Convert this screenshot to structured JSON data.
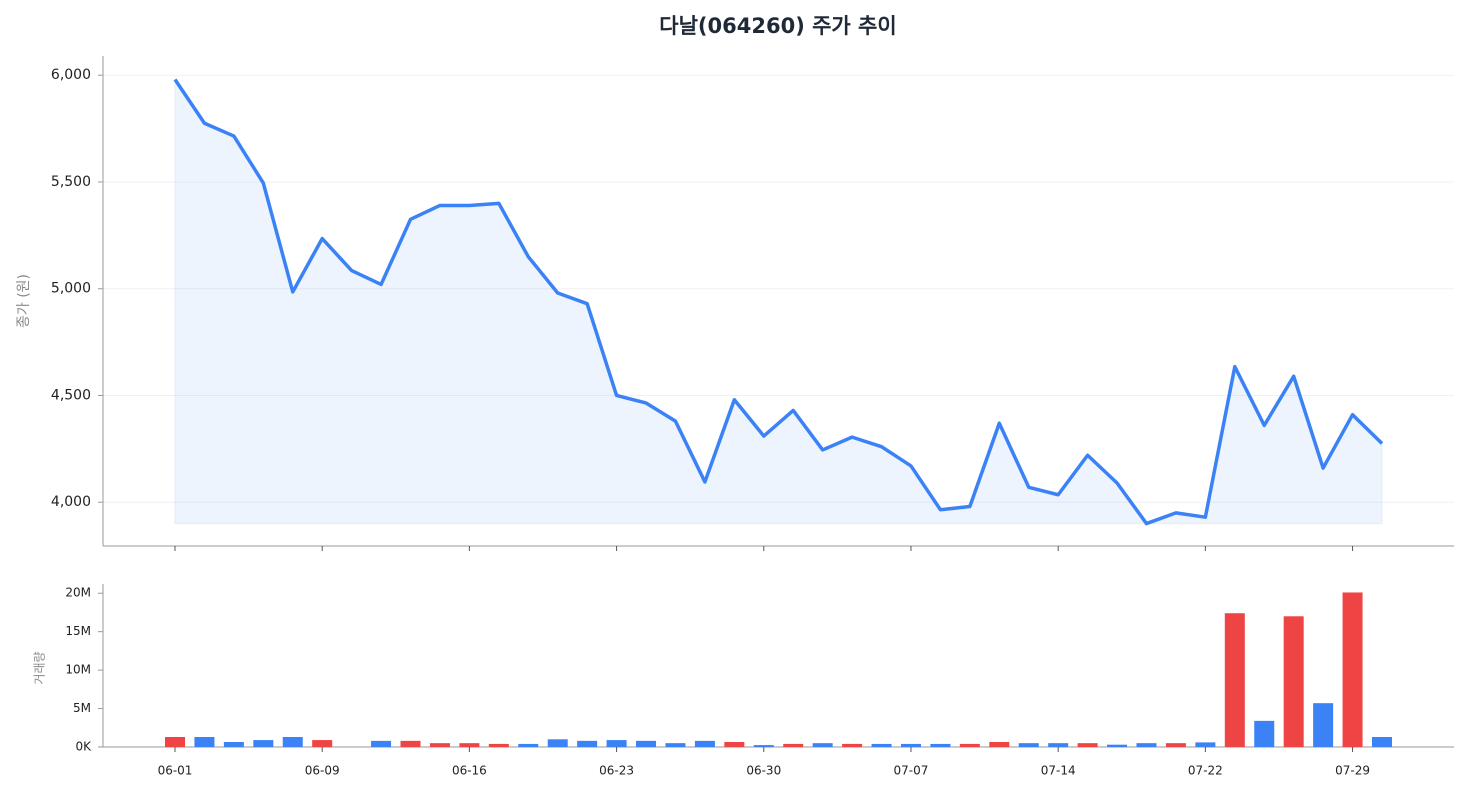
{
  "chart_data": [
    {
      "type": "line",
      "title": "다날(064260) 주가 추이",
      "ylabel": "종가 (원)",
      "color": "#3b82f6",
      "area": true,
      "grid": true,
      "values": [
        5980,
        5775,
        5715,
        5495,
        4985,
        5235,
        5085,
        5020,
        5325,
        5390,
        5390,
        5400,
        5150,
        4980,
        4930,
        4500,
        4465,
        4380,
        4095,
        4480,
        4310,
        4430,
        4245,
        4305,
        4260,
        4170,
        3965,
        3980,
        4370,
        4070,
        4035,
        4220,
        4090,
        3900,
        3950,
        3930,
        4635,
        4360,
        4590,
        4160,
        4410,
        4275
      ],
      "ylim": [
        3795,
        6090
      ],
      "yticks": [
        {
          "value": 4000,
          "label": "4,000"
        },
        {
          "value": 4500,
          "label": "4,500"
        },
        {
          "value": 5000,
          "label": "5,000"
        },
        {
          "value": 5500,
          "label": "5,500"
        },
        {
          "value": 6000,
          "label": "6,000"
        }
      ]
    },
    {
      "type": "bar",
      "ylabel": "거래량",
      "categories": [
        "06-01",
        null,
        null,
        null,
        null,
        "06-09",
        null,
        null,
        null,
        null,
        "06-16",
        null,
        null,
        null,
        null,
        "06-23",
        null,
        null,
        null,
        null,
        "06-30",
        null,
        null,
        null,
        null,
        "07-07",
        null,
        null,
        null,
        null,
        "07-14",
        null,
        null,
        null,
        null,
        "07-22",
        null,
        null,
        null,
        null,
        "07-29",
        null
      ],
      "values": [
        1300000,
        1300000,
        650000,
        900000,
        1300000,
        900000,
        0,
        800000,
        800000,
        500000,
        500000,
        400000,
        400000,
        1000000,
        800000,
        900000,
        800000,
        500000,
        800000,
        650000,
        250000,
        400000,
        500000,
        400000,
        400000,
        400000,
        400000,
        400000,
        650000,
        500000,
        500000,
        500000,
        300000,
        500000,
        500000,
        600000,
        17400000,
        3400000,
        17000000,
        5700000,
        20100000,
        1300000
      ],
      "colors": [
        "#ef4444",
        "#3b82f6",
        "#3b82f6",
        "#3b82f6",
        "#3b82f6",
        "#ef4444",
        "#3b82f6",
        "#3b82f6",
        "#ef4444",
        "#ef4444",
        "#ef4444",
        "#ef4444",
        "#3b82f6",
        "#3b82f6",
        "#3b82f6",
        "#3b82f6",
        "#3b82f6",
        "#3b82f6",
        "#3b82f6",
        "#ef4444",
        "#3b82f6",
        "#ef4444",
        "#3b82f6",
        "#ef4444",
        "#3b82f6",
        "#3b82f6",
        "#3b82f6",
        "#ef4444",
        "#ef4444",
        "#3b82f6",
        "#3b82f6",
        "#ef4444",
        "#3b82f6",
        "#3b82f6",
        "#ef4444",
        "#3b82f6",
        "#ef4444",
        "#3b82f6",
        "#ef4444",
        "#3b82f6",
        "#ef4444",
        "#3b82f6"
      ],
      "ylim": [
        0,
        21200000
      ],
      "yticks": [
        {
          "value": 0,
          "label": "0K"
        },
        {
          "value": 5000000,
          "label": "5M"
        },
        {
          "value": 10000000,
          "label": "10M"
        },
        {
          "value": 15000000,
          "label": "15M"
        },
        {
          "value": 20000000,
          "label": "20M"
        }
      ]
    }
  ]
}
